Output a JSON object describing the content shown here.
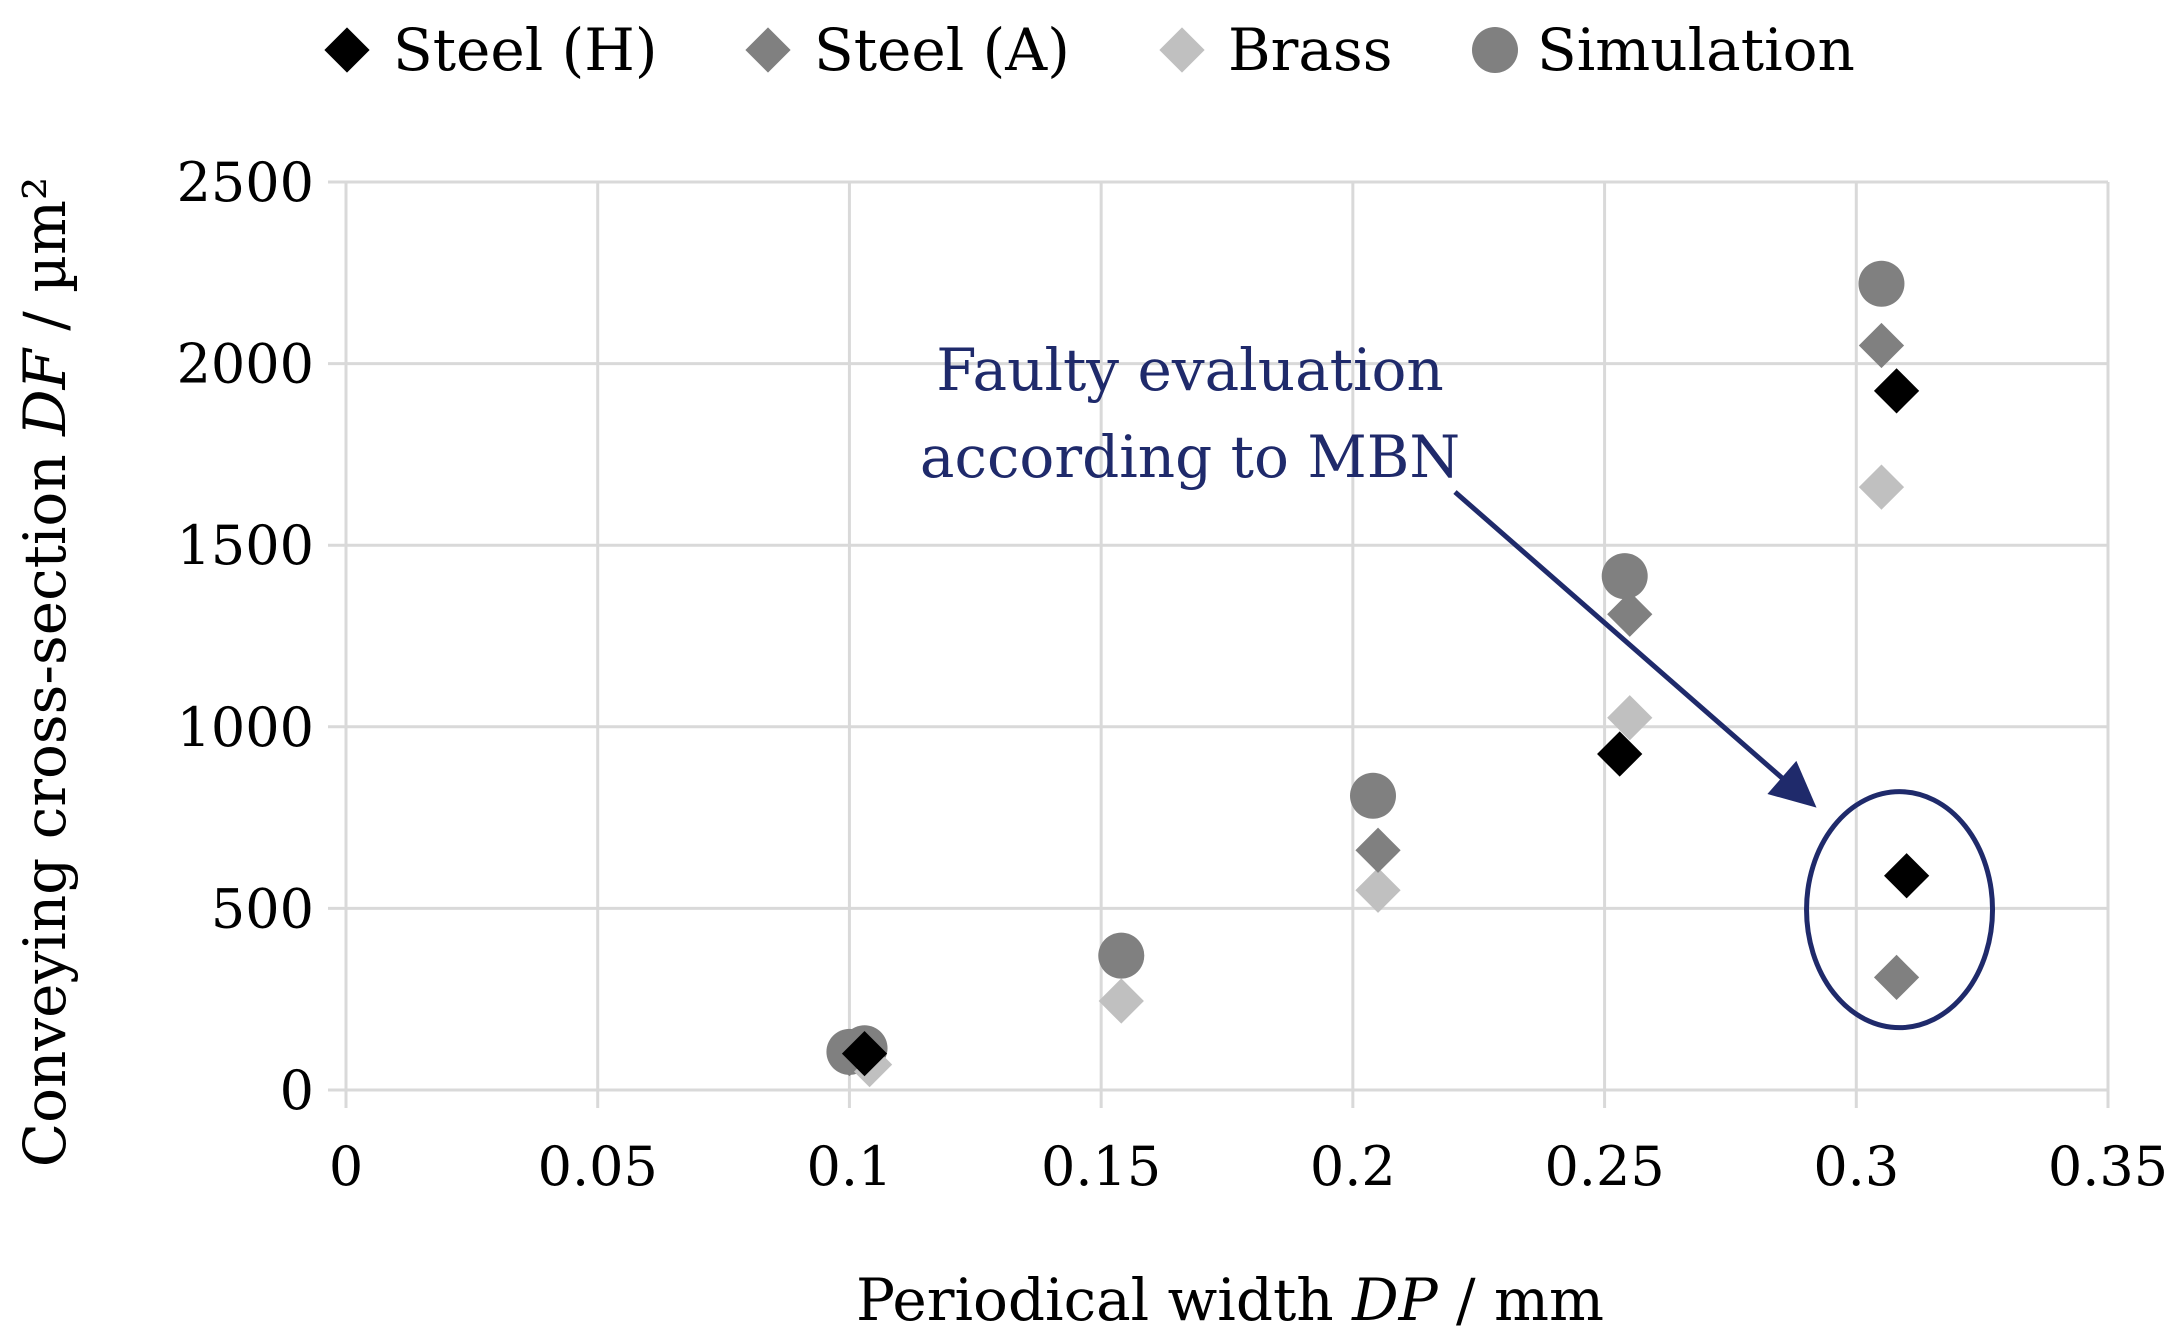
{
  "chart_data": {
    "type": "scatter",
    "xlabel": {
      "prefix": "Periodical width ",
      "var": "DP",
      "unit": " / mm"
    },
    "ylabel": {
      "prefix": "Conveying cross-section ",
      "var": "DF",
      "unit": " / µm²"
    },
    "xlim": [
      0,
      0.35
    ],
    "ylim": [
      0,
      2500
    ],
    "x_ticks": [
      "0",
      "0.05",
      "0.1",
      "0.15",
      "0.2",
      "0.25",
      "0.3",
      "0.35"
    ],
    "y_ticks": [
      "0",
      "500",
      "1000",
      "1500",
      "2000",
      "2500"
    ],
    "grid": true,
    "legend_position": "top",
    "series": [
      {
        "name": "Steel (H)",
        "marker": "diamond",
        "color": "#000000",
        "points": [
          [
            0.103,
            100
          ],
          [
            0.253,
            925
          ],
          [
            0.308,
            1925
          ],
          [
            0.31,
            590
          ]
        ]
      },
      {
        "name": "Steel (A)",
        "marker": "diamond",
        "color": "#808080",
        "points": [
          [
            0.1,
            100
          ],
          [
            0.205,
            660
          ],
          [
            0.255,
            1310
          ],
          [
            0.305,
            2050
          ],
          [
            0.308,
            310
          ]
        ]
      },
      {
        "name": "Brass",
        "marker": "diamond",
        "color": "#c0c0c0",
        "points": [
          [
            0.104,
            70
          ],
          [
            0.154,
            245
          ],
          [
            0.205,
            550
          ],
          [
            0.255,
            1025
          ],
          [
            0.305,
            1660
          ]
        ]
      },
      {
        "name": "Simulation",
        "marker": "circle",
        "color": "#808080",
        "points": [
          [
            0.1,
            105
          ],
          [
            0.103,
            115
          ],
          [
            0.154,
            370
          ],
          [
            0.204,
            810
          ],
          [
            0.254,
            1415
          ],
          [
            0.305,
            2220
          ]
        ]
      }
    ],
    "annotation": {
      "lines": [
        "Faulty evaluation",
        "according to MBN"
      ],
      "color": "#1f2a6b",
      "target": [
        0.307,
        480
      ]
    }
  }
}
